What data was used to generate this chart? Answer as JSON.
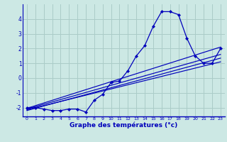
{
  "xlabel": "Graphe des températures (°c)",
  "bg_color": "#cce8e4",
  "grid_color": "#aaccc8",
  "line_color": "#0000bb",
  "axis_color": "#0000bb",
  "xlim": [
    -0.5,
    23.5
  ],
  "ylim": [
    -2.6,
    5.0
  ],
  "xticks": [
    0,
    1,
    2,
    3,
    4,
    5,
    6,
    7,
    8,
    9,
    10,
    11,
    12,
    13,
    14,
    15,
    16,
    17,
    18,
    19,
    20,
    21,
    22,
    23
  ],
  "yticks": [
    -2,
    -1,
    0,
    1,
    2,
    3,
    4
  ],
  "main_curve": [
    [
      0,
      -2.0
    ],
    [
      1,
      -2.0
    ],
    [
      2,
      -2.1
    ],
    [
      3,
      -2.2
    ],
    [
      4,
      -2.2
    ],
    [
      5,
      -2.1
    ],
    [
      6,
      -2.1
    ],
    [
      7,
      -2.3
    ],
    [
      8,
      -1.5
    ],
    [
      9,
      -1.1
    ],
    [
      10,
      -0.3
    ],
    [
      11,
      -0.2
    ],
    [
      12,
      0.5
    ],
    [
      13,
      1.5
    ],
    [
      14,
      2.2
    ],
    [
      15,
      3.5
    ],
    [
      16,
      4.5
    ],
    [
      17,
      4.5
    ],
    [
      18,
      4.3
    ],
    [
      19,
      2.7
    ],
    [
      20,
      1.5
    ],
    [
      21,
      1.0
    ],
    [
      22,
      1.0
    ],
    [
      23,
      2.0
    ]
  ],
  "linear_lines": [
    [
      -2.05,
      2.1
    ],
    [
      -2.1,
      1.6
    ],
    [
      -2.15,
      1.1
    ],
    [
      -2.2,
      1.35
    ]
  ],
  "figsize": [
    3.2,
    2.0
  ],
  "dpi": 100
}
